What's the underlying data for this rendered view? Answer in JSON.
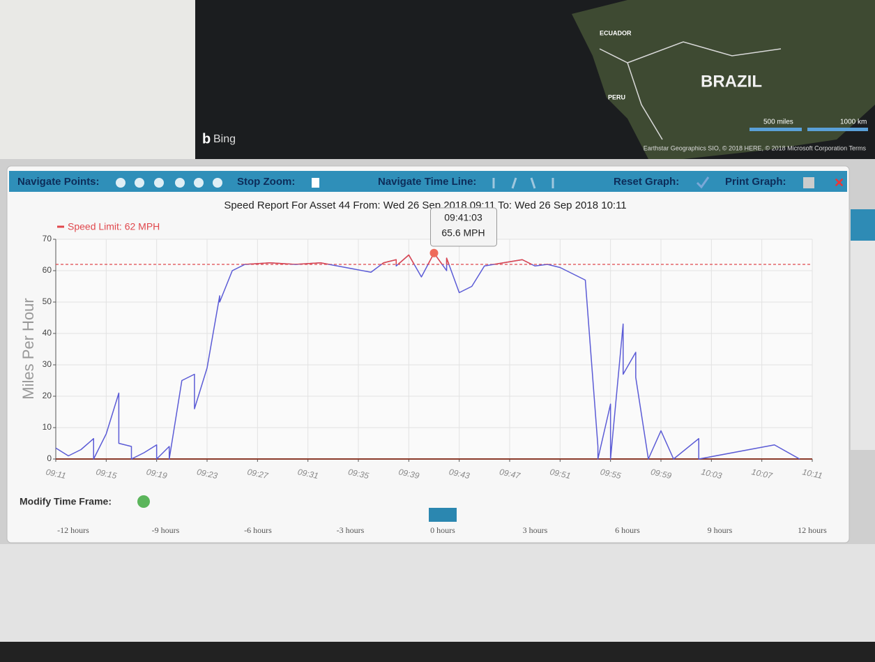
{
  "map": {
    "brand": "Bing",
    "labels": [
      "ECUADOR",
      "PERU",
      "BRAZIL"
    ],
    "scale": [
      "500 miles",
      "1000 km"
    ],
    "attribution": "Earthstar Geographics SIO, © 2018 HERE, © 2018 Microsoft Corporation Terms"
  },
  "toolbar": {
    "navigate_points": "Navigate Points:",
    "stop_zoom": "Stop Zoom:",
    "navigate_time_line": "Navigate Time Line:",
    "reset_graph": "Reset Graph:",
    "print_graph": "Print Graph:"
  },
  "chart_data": {
    "type": "line",
    "title": "Speed Report For Asset 44 From: Wed 26 Sep 2018 09:11 To: Wed 26 Sep 2018 10:11",
    "y_label": "Miles Per Hour",
    "speed_limit": {
      "label": "Speed Limit: 62 MPH",
      "value": 62,
      "color": "#e0474c"
    },
    "line_color": "#5b5bd6",
    "x": [
      "09:11",
      "09:12",
      "09:13",
      "09:14",
      "09:14",
      "09:15",
      "09:16",
      "09:16",
      "09:17",
      "09:17",
      "09:18",
      "09:19",
      "09:19",
      "09:20",
      "09:20",
      "09:21",
      "09:22",
      "09:22",
      "09:23",
      "09:24",
      "09:24",
      "09:25",
      "09:26",
      "09:28",
      "09:30",
      "09:32",
      "09:34",
      "09:36",
      "09:37",
      "09:38",
      "09:38",
      "09:39",
      "09:40",
      "09:41",
      "09:42",
      "09:42",
      "09:43",
      "09:44",
      "09:45",
      "09:48",
      "09:49",
      "09:50",
      "09:51",
      "09:53",
      "09:54",
      "09:54",
      "09:55",
      "09:55",
      "09:56",
      "09:56",
      "09:56",
      "09:57",
      "09:57",
      "09:58",
      "09:59",
      "10:00",
      "10:02",
      "10:02",
      "10:08",
      "10:10"
    ],
    "values": [
      3.5,
      1,
      3,
      6.5,
      0,
      8,
      21,
      5,
      4,
      0,
      2,
      4.5,
      0,
      4,
      0,
      25,
      27,
      16,
      29,
      52,
      50,
      60,
      62,
      62.5,
      62,
      62.5,
      61,
      59.5,
      62.5,
      63.5,
      61.5,
      65,
      58,
      65.6,
      60,
      64,
      53,
      55,
      61.5,
      63.5,
      61.5,
      62,
      61,
      57,
      4,
      0,
      17.5,
      0,
      43,
      41,
      27,
      34,
      26,
      0,
      9,
      0,
      6.5,
      0,
      4.5,
      0
    ],
    "xlim": [
      "09:11",
      "10:11"
    ],
    "xticks": [
      "09:11",
      "09:15",
      "09:19",
      "09:23",
      "09:27",
      "09:31",
      "09:35",
      "09:39",
      "09:43",
      "09:47",
      "09:51",
      "09:55",
      "09:59",
      "10:03",
      "10:07",
      "10:11"
    ],
    "ylim": [
      0,
      70
    ],
    "yticks": [
      0,
      10,
      20,
      30,
      40,
      50,
      60,
      70
    ],
    "grid": true,
    "tooltip": {
      "time": "09:41:03",
      "text": "65.6 MPH"
    }
  },
  "time_frame": {
    "label": "Modify Time Frame:",
    "options": [
      "-12 hours",
      "-9 hours",
      "-6 hours",
      "-3 hours",
      "0 hours",
      "3 hours",
      "6 hours",
      "9 hours",
      "12 hours"
    ],
    "selected": 4
  }
}
